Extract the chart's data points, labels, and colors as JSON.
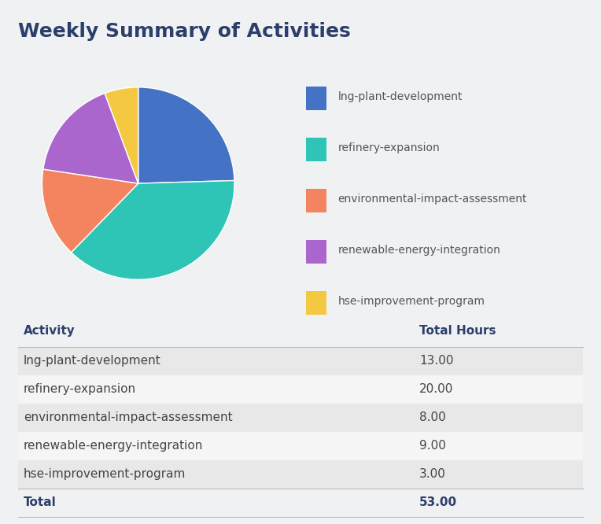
{
  "title": "Weekly Summary of Activities",
  "activities": [
    "lng-plant-development",
    "refinery-expansion",
    "environmental-impact-assessment",
    "renewable-energy-integration",
    "hse-improvement-program"
  ],
  "hours": [
    13.0,
    20.0,
    8.0,
    9.0,
    3.0
  ],
  "total": 53.0,
  "colors": [
    "#4472C4",
    "#2EC4B6",
    "#F4845F",
    "#AA66CC",
    "#F5C842"
  ],
  "bg_color": "#F0F1F3",
  "title_color": "#2C3E6B",
  "table_header_color": "#2C3E6B",
  "table_row_alt_color": "#E8E8E8",
  "table_row_color": "#F5F5F5",
  "title_fontsize": 18,
  "legend_fontsize": 10,
  "table_fontsize": 11
}
